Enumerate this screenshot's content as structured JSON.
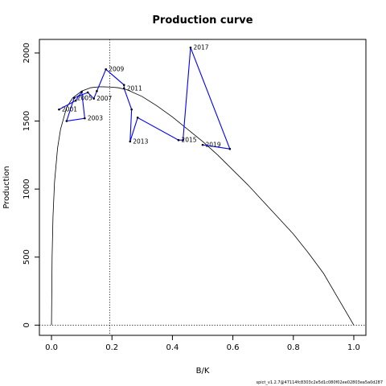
{
  "chart_data": {
    "type": "line",
    "title": "Production curve",
    "xlabel": "B/K",
    "ylabel": "Production",
    "xlim": [
      -0.04,
      1.04
    ],
    "ylim": [
      -75,
      2100
    ],
    "x_ticks": [
      "0.0",
      "0.2",
      "0.4",
      "0.6",
      "0.8",
      "1.0"
    ],
    "x_tick_values": [
      0,
      0.2,
      0.4,
      0.6,
      0.8,
      1.0
    ],
    "y_ticks": [
      "0",
      "500",
      "1000",
      "1500",
      "2000"
    ],
    "y_tick_values": [
      0,
      500,
      1000,
      1500,
      2000
    ],
    "bmsy_ratio": 0.193,
    "reference_line_y": 0,
    "series": [
      {
        "role": "production_curve",
        "color": "#000000",
        "x": [
          0,
          0.002,
          0.005,
          0.01,
          0.02,
          0.03,
          0.05,
          0.07,
          0.1,
          0.13,
          0.16,
          0.193,
          0.22,
          0.25,
          0.3,
          0.35,
          0.4,
          0.45,
          0.5,
          0.55,
          0.6,
          0.65,
          0.7,
          0.75,
          0.8,
          0.85,
          0.9,
          0.95,
          1.0
        ],
        "y": [
          0,
          500,
          800,
          1050,
          1300,
          1440,
          1600,
          1670,
          1720,
          1745,
          1752,
          1750,
          1745,
          1730,
          1680,
          1610,
          1530,
          1440,
          1350,
          1250,
          1140,
          1030,
          910,
          790,
          670,
          530,
          380,
          190,
          0
        ]
      },
      {
        "role": "observed_trajectory",
        "color": "#0000ff",
        "points": [
          {
            "label": "2001",
            "x": 0.025,
            "y": 1585
          },
          {
            "label": "",
            "x": 0.08,
            "y": 1650
          },
          {
            "label": "",
            "x": 0.1,
            "y": 1715
          },
          {
            "label": "2003",
            "x": 0.11,
            "y": 1520
          },
          {
            "label": "",
            "x": 0.05,
            "y": 1500
          },
          {
            "label": "2005",
            "x": 0.075,
            "y": 1670
          },
          {
            "label": "",
            "x": 0.12,
            "y": 1710
          },
          {
            "label": "2007",
            "x": 0.14,
            "y": 1665
          },
          {
            "label": "",
            "x": 0.15,
            "y": 1720
          },
          {
            "label": "2009",
            "x": 0.18,
            "y": 1880
          },
          {
            "label": "",
            "x": 0.24,
            "y": 1765
          },
          {
            "label": "2011",
            "x": 0.24,
            "y": 1740
          },
          {
            "label": "",
            "x": 0.265,
            "y": 1585
          },
          {
            "label": "2013",
            "x": 0.26,
            "y": 1350
          },
          {
            "label": "",
            "x": 0.285,
            "y": 1525
          },
          {
            "label": "2015",
            "x": 0.42,
            "y": 1360
          },
          {
            "label": "",
            "x": 0.435,
            "y": 1360
          },
          {
            "label": "2017",
            "x": 0.46,
            "y": 2040
          },
          {
            "label": "",
            "x": 0.59,
            "y": 1295
          },
          {
            "label": "2019",
            "x": 0.5,
            "y": 1325
          }
        ]
      }
    ],
    "grid": false,
    "footer_text": "spict_v1.2.7@47114fc8303c2e5d1c080f02ee02803ea5a0d287"
  }
}
